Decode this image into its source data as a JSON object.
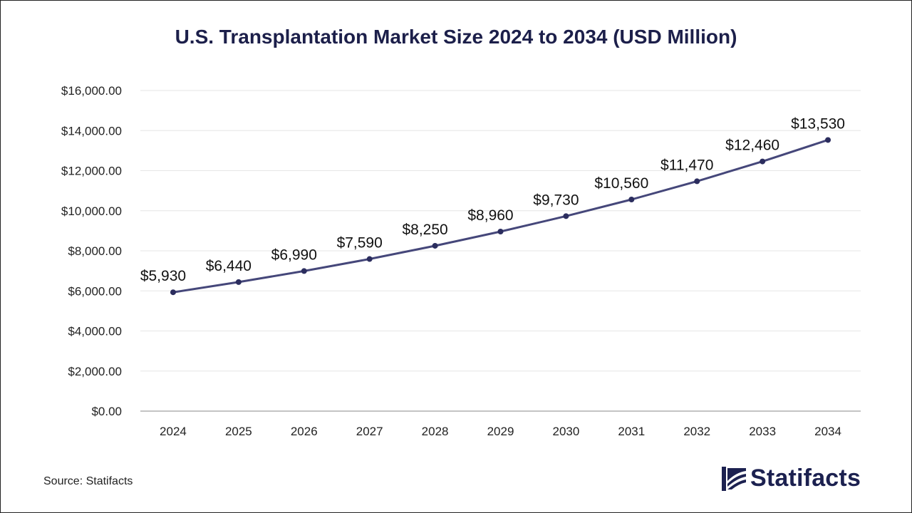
{
  "chart_data": {
    "type": "line",
    "title": "U.S. Transplantation Market Size 2024 to 2034 (USD Million)",
    "xlabel": "",
    "ylabel": "",
    "categories": [
      "2024",
      "2025",
      "2026",
      "2027",
      "2028",
      "2029",
      "2030",
      "2031",
      "2032",
      "2033",
      "2034"
    ],
    "series": [
      {
        "name": "U.S. Transplantation Market Size",
        "values": [
          5930,
          6440,
          6990,
          7590,
          8250,
          8960,
          9730,
          10560,
          11470,
          12460,
          13530
        ],
        "labels": [
          "$5,930",
          "$6,440",
          "$6,990",
          "$7,590",
          "$8,250",
          "$8,960",
          "$9,730",
          "$10,560",
          "$11,470",
          "$12,460",
          "$13,530"
        ],
        "color": "#45477a"
      }
    ],
    "ylim": [
      0,
      16000
    ],
    "yticks": [
      0,
      2000,
      4000,
      6000,
      8000,
      10000,
      12000,
      14000,
      16000
    ],
    "ytick_labels": [
      "$0.00",
      "$2,000.00",
      "$4,000.00",
      "$6,000.00",
      "$8,000.00",
      "$10,000.00",
      "$12,000.00",
      "$14,000.00",
      "$16,000.00"
    ],
    "grid": true,
    "legend": "none"
  },
  "footer": {
    "source": "Source: Statifacts",
    "brand": "Statifacts",
    "brand_color": "#1c2150"
  },
  "colors": {
    "title": "#1c1f4a",
    "line": "#45477a",
    "marker": "#2b2d5e",
    "grid": "#e6e6e6",
    "axis": "#b0b0b0"
  }
}
